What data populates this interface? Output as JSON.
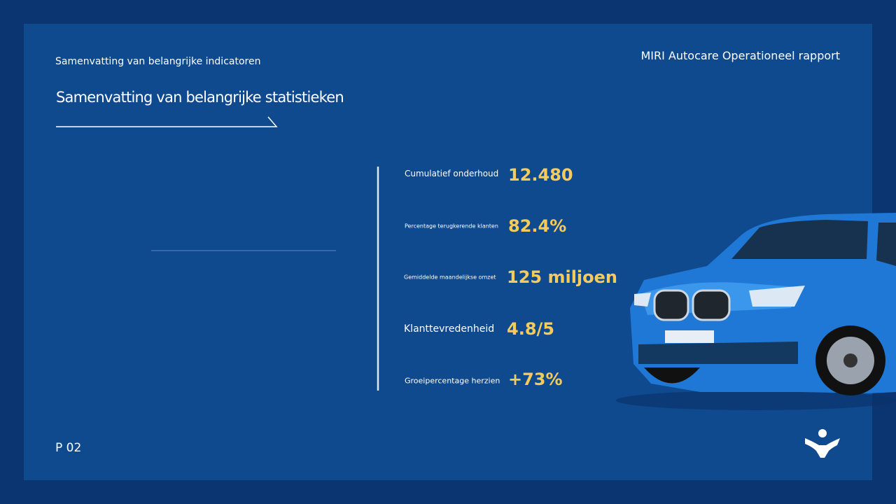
{
  "header": {
    "subtitle": "Samenvatting van belangrijke indicatoren",
    "brand": "MIRI Autocare Operationeel rapport",
    "title": "Samenvatting van belangrijke statistieken"
  },
  "stats": [
    {
      "label": "Cumulatief onderhoud",
      "value": "12.480"
    },
    {
      "label": "Percentage terugkerende klanten",
      "value": "82.4%"
    },
    {
      "label": "Gemiddelde maandelijkse omzet",
      "value": "125 miljoen"
    },
    {
      "label": "Klanttevredenheid",
      "value": "4.8/5"
    },
    {
      "label": "Groeipercentage herzien",
      "value": "+73%"
    }
  ],
  "footer": {
    "page": "P 02"
  }
}
